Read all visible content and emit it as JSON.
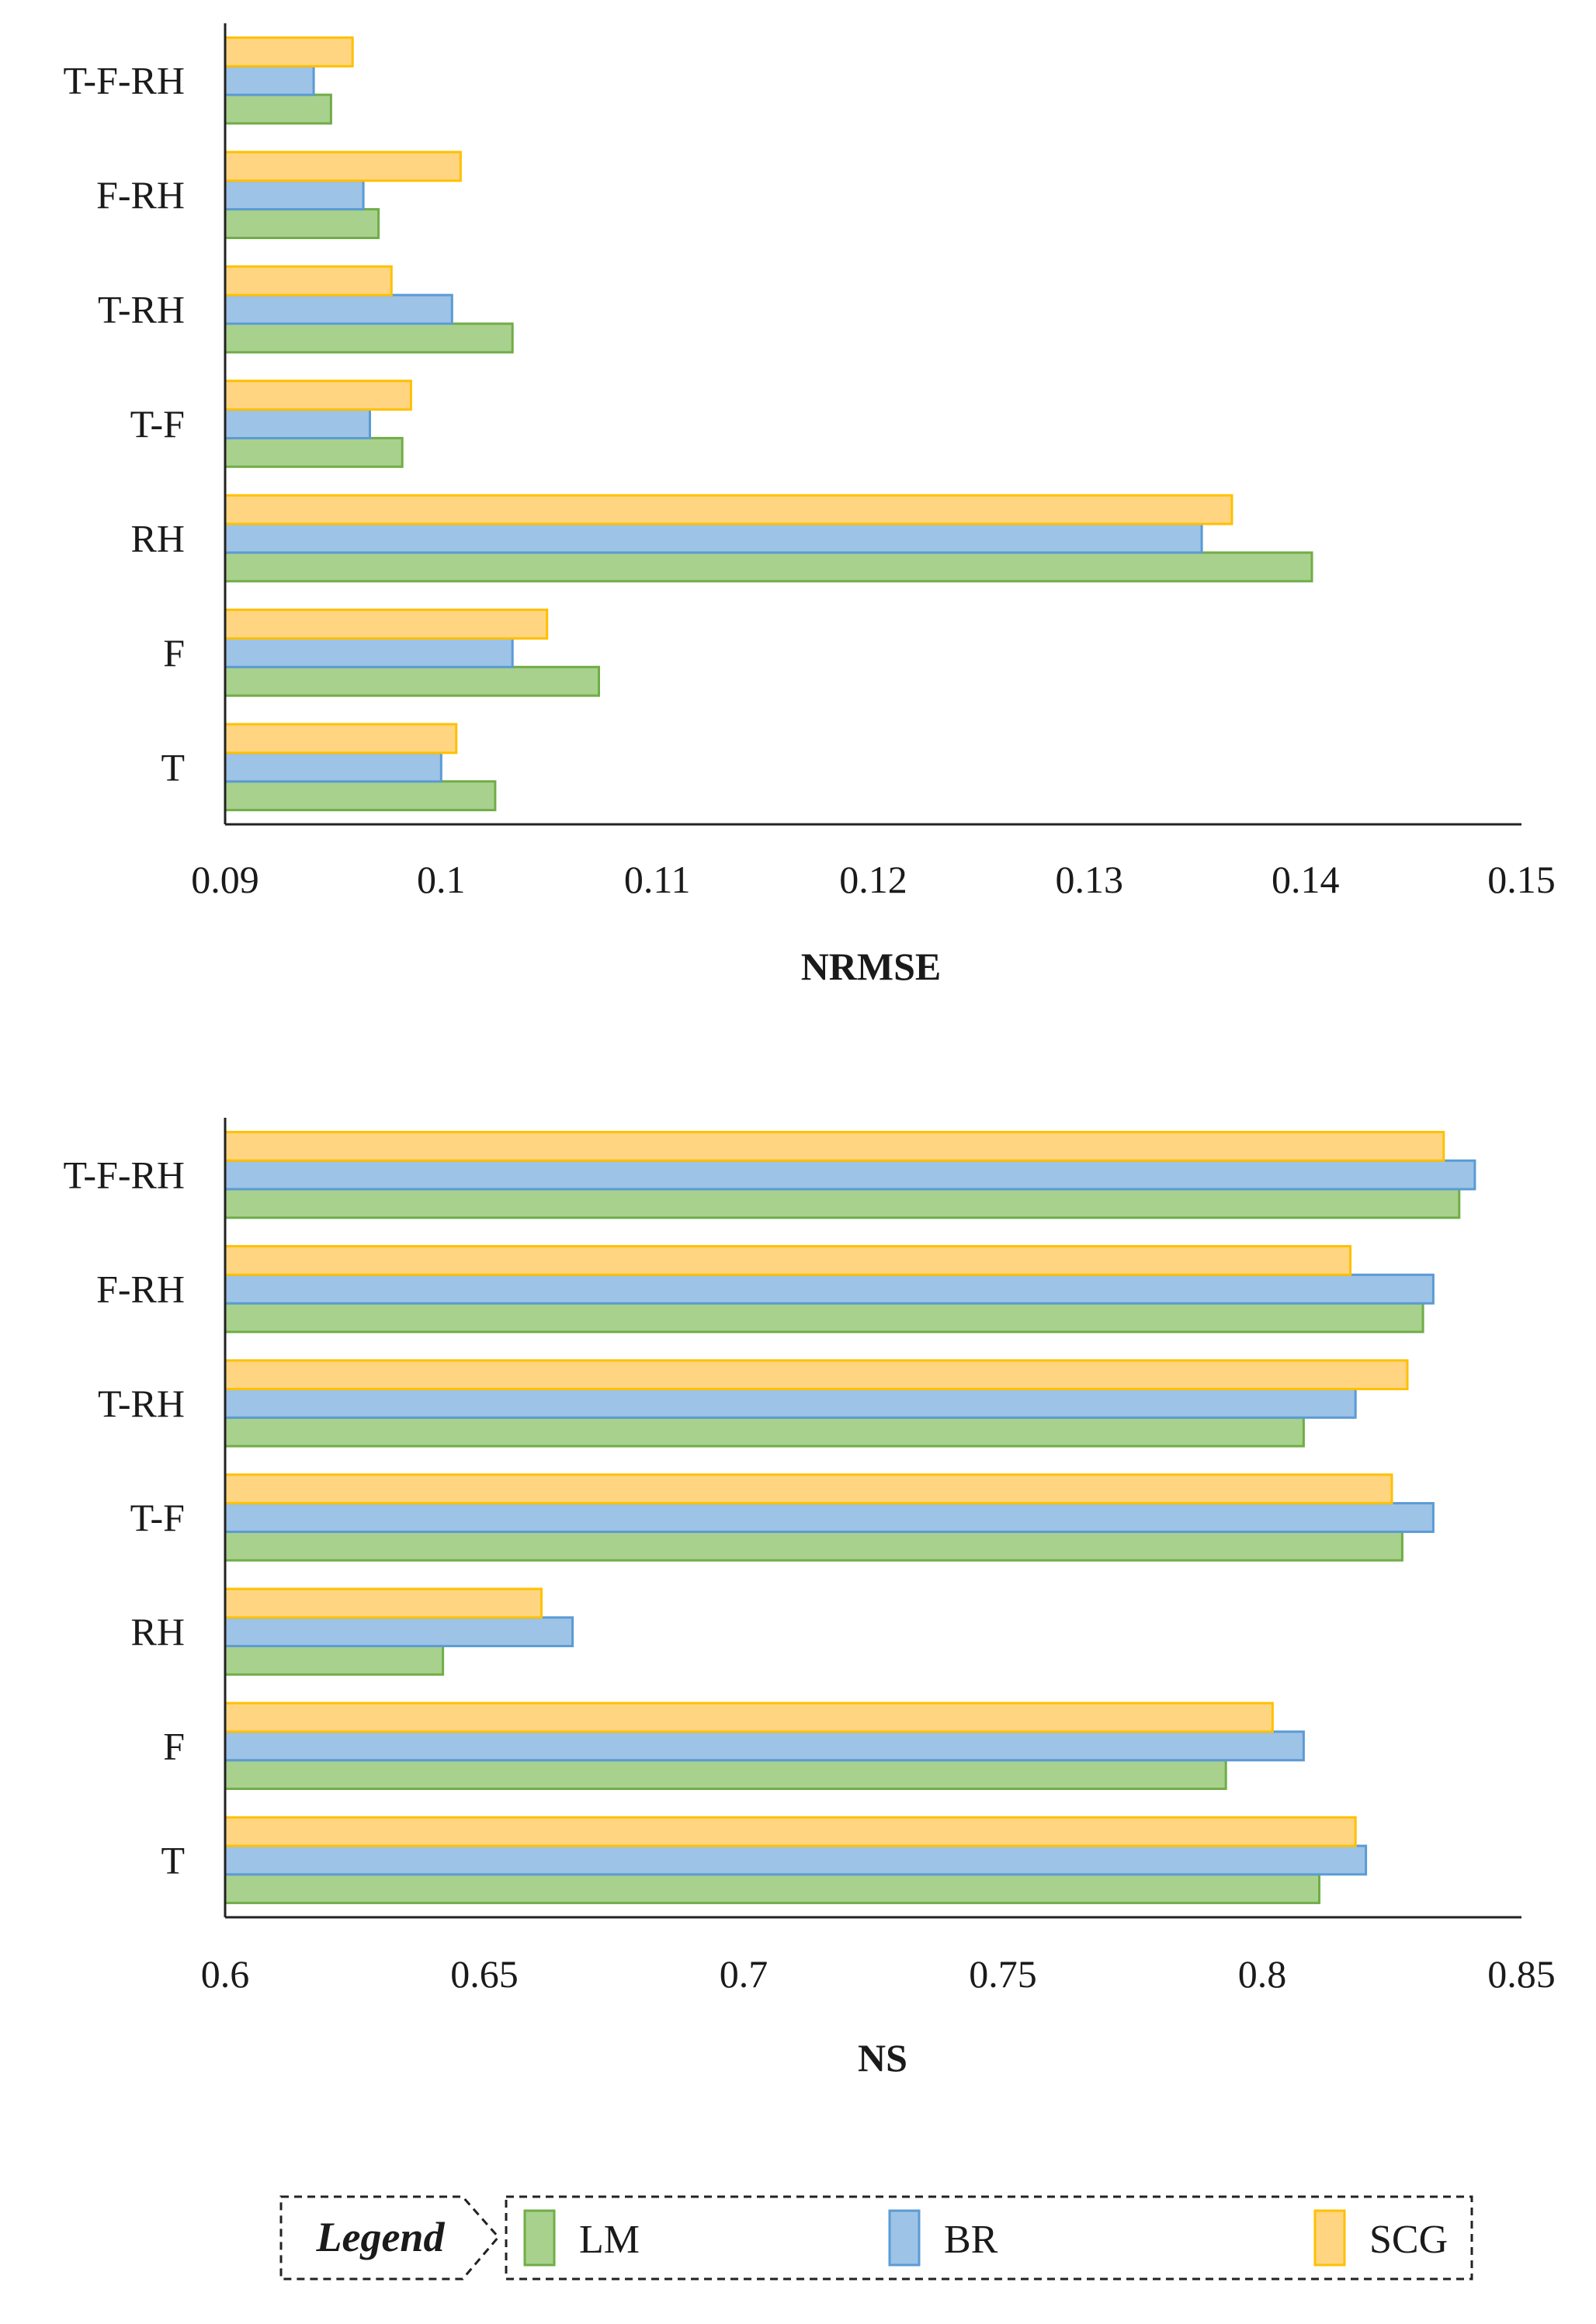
{
  "series_style": [
    {
      "name": "LM",
      "fill": "#a9d18e",
      "stroke": "#70ad47"
    },
    {
      "name": "BR",
      "fill": "#9dc3e6",
      "stroke": "#5b9bd5"
    },
    {
      "name": "SCG",
      "fill": "#ffd582",
      "stroke": "#ffc000"
    }
  ],
  "chart_data": [
    {
      "type": "bar",
      "orientation": "horizontal",
      "title": "",
      "xlabel": "NRMSE",
      "ylabel": "",
      "categories": [
        "T",
        "F",
        "RH",
        "T-F",
        "T-RH",
        "F-RH",
        "T-F-RH"
      ],
      "xlim": [
        0.09,
        0.15
      ],
      "xticks": [
        0.09,
        0.1,
        0.11,
        0.12,
        0.13,
        0.14,
        0.15
      ],
      "xtick_labels": [
        "0.09",
        "0.1",
        "0.11",
        "0.12",
        "0.13",
        "0.14",
        "0.15"
      ],
      "grid": false,
      "series": [
        {
          "name": "LM",
          "values": [
            0.1025,
            0.1073,
            0.1403,
            0.0982,
            0.1033,
            0.0971,
            0.0949
          ]
        },
        {
          "name": "BR",
          "values": [
            0.1,
            0.1033,
            0.1352,
            0.0967,
            0.1005,
            0.0964,
            0.0941
          ]
        },
        {
          "name": "SCG",
          "values": [
            0.1007,
            0.1049,
            0.1366,
            0.0986,
            0.0977,
            0.1009,
            0.0959
          ]
        }
      ]
    },
    {
      "type": "bar",
      "orientation": "horizontal",
      "title": "",
      "xlabel": "NS",
      "ylabel": "",
      "categories": [
        "T",
        "F",
        "RH",
        "T-F",
        "T-RH",
        "F-RH",
        "T-F-RH"
      ],
      "xlim": [
        0.6,
        0.85
      ],
      "xticks": [
        0.6,
        0.65,
        0.7,
        0.75,
        0.8,
        0.85
      ],
      "xtick_labels": [
        "0.6",
        "0.65",
        "0.7",
        "0.75",
        "0.8",
        "0.85"
      ],
      "grid": false,
      "series": [
        {
          "name": "LM",
          "values": [
            0.811,
            0.793,
            0.642,
            0.827,
            0.808,
            0.831,
            0.838
          ]
        },
        {
          "name": "BR",
          "values": [
            0.82,
            0.808,
            0.667,
            0.833,
            0.818,
            0.833,
            0.841
          ]
        },
        {
          "name": "SCG",
          "values": [
            0.818,
            0.802,
            0.661,
            0.825,
            0.828,
            0.817,
            0.835
          ]
        }
      ]
    }
  ],
  "legend": {
    "title": "Legend",
    "items": [
      "LM",
      "BR",
      "SCG"
    ]
  }
}
